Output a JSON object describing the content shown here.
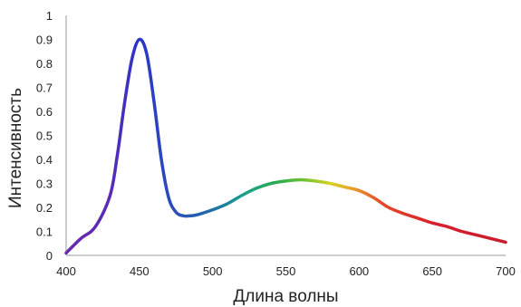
{
  "chart_data": {
    "type": "line",
    "title": "",
    "xlabel": "Длина волны",
    "ylabel": "Интенсивность",
    "xlim": [
      400,
      700
    ],
    "ylim": [
      0,
      1
    ],
    "grid": false,
    "legend": "none",
    "x_ticks": [
      400,
      450,
      500,
      550,
      600,
      650,
      700
    ],
    "x_tick_labels": [
      "400",
      "450",
      "500",
      "550",
      "600",
      "650",
      "700"
    ],
    "y_ticks": [
      0,
      0.1,
      0.2,
      0.3,
      0.4,
      0.5,
      0.6,
      0.7,
      0.8,
      0.9,
      1
    ],
    "y_tick_labels": [
      "0",
      "0.1",
      "0.2",
      "0.3",
      "0.4",
      "0.5",
      "0.6",
      "0.7",
      "0.8",
      "0.9",
      "1"
    ],
    "axis_color": "#999999",
    "series": [
      {
        "x": [
          400,
          410,
          420,
          430,
          435,
          440,
          445,
          450,
          455,
          460,
          465,
          470,
          475,
          480,
          485,
          490,
          500,
          510,
          520,
          530,
          540,
          550,
          560,
          570,
          580,
          590,
          600,
          610,
          620,
          630,
          640,
          650,
          660,
          670,
          680,
          690,
          700
        ],
        "values": [
          0.01,
          0.07,
          0.12,
          0.25,
          0.42,
          0.64,
          0.82,
          0.9,
          0.84,
          0.64,
          0.4,
          0.24,
          0.18,
          0.165,
          0.165,
          0.17,
          0.19,
          0.215,
          0.25,
          0.28,
          0.3,
          0.31,
          0.315,
          0.31,
          0.3,
          0.285,
          0.27,
          0.24,
          0.2,
          0.175,
          0.155,
          0.135,
          0.12,
          0.1,
          0.085,
          0.07,
          0.055
        ]
      }
    ],
    "color_stops": [
      {
        "x": 400,
        "color": "#6a2ba8"
      },
      {
        "x": 430,
        "color": "#5a2ab8"
      },
      {
        "x": 450,
        "color": "#2a36c8"
      },
      {
        "x": 480,
        "color": "#2a55b5"
      },
      {
        "x": 500,
        "color": "#1e6fa8"
      },
      {
        "x": 520,
        "color": "#1b9e90"
      },
      {
        "x": 545,
        "color": "#2aad4c"
      },
      {
        "x": 565,
        "color": "#7ac42e"
      },
      {
        "x": 580,
        "color": "#d6d224"
      },
      {
        "x": 595,
        "color": "#e8a22a"
      },
      {
        "x": 615,
        "color": "#e64a28"
      },
      {
        "x": 650,
        "color": "#d8202e"
      },
      {
        "x": 700,
        "color": "#c81c2c"
      }
    ]
  }
}
